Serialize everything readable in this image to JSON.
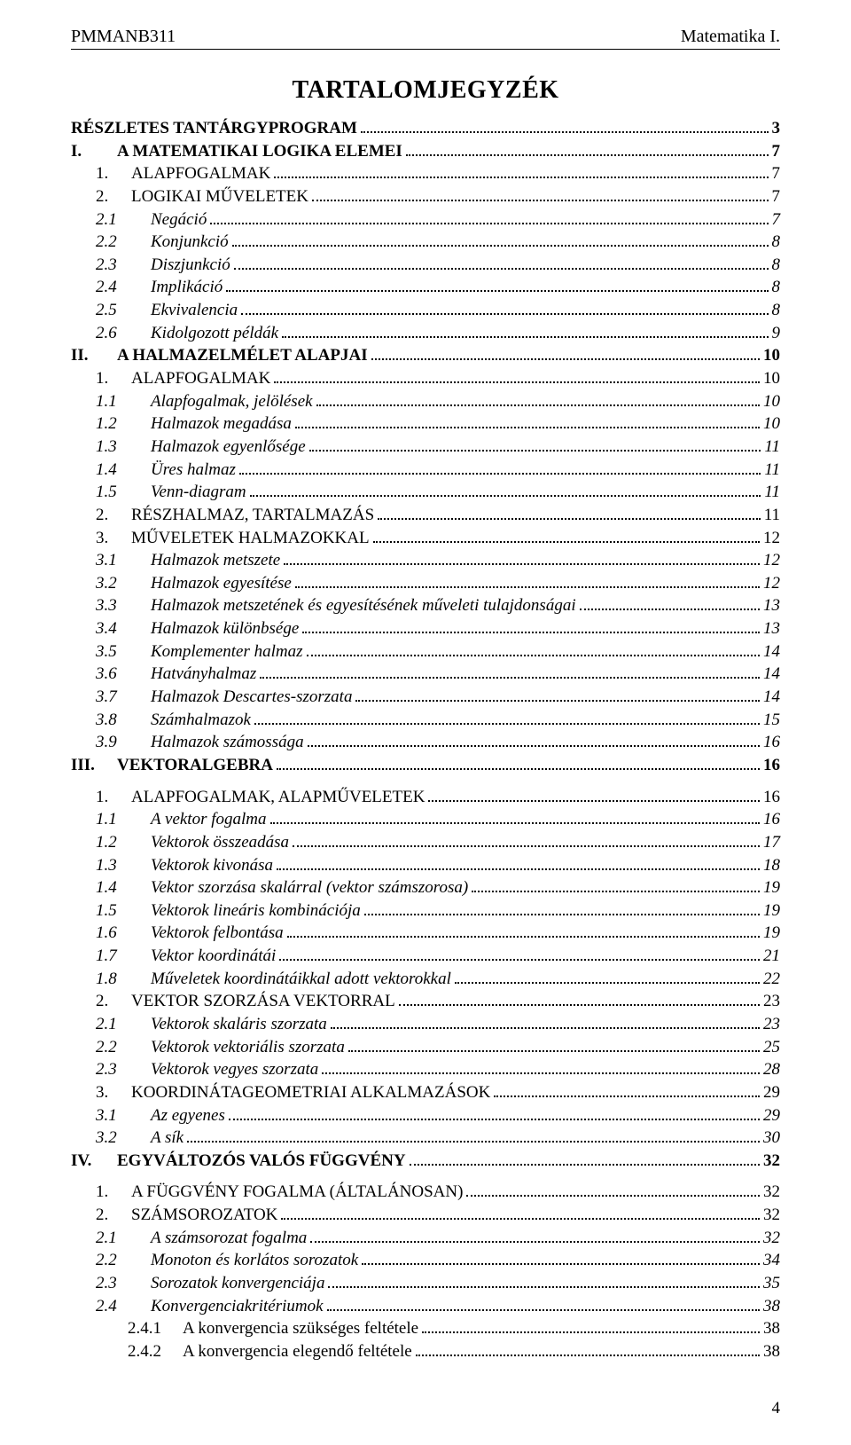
{
  "header": {
    "left": "PMMANB311",
    "right": "Matematika I."
  },
  "title": "TARTALOMJEGYZÉK",
  "page_number": "4",
  "colors": {
    "text": "#000000",
    "bg": "#ffffff",
    "leader": "#000000"
  },
  "fonts": {
    "family": "Times New Roman",
    "body_pt": 19,
    "title_pt": 28,
    "header_pt": 20
  },
  "toc": [
    {
      "level": "top-plain",
      "num": "",
      "label": "RÉSZLETES TANTÁRGYPROGRAM",
      "page": "3",
      "gap_before": false
    },
    {
      "level": "roman",
      "num": "I.",
      "label": "A MATEMATIKAI LOGIKA ELEMEI",
      "page": "7",
      "gap_before": false
    },
    {
      "level": "sec",
      "num": "1.",
      "label": "ALAPFOGALMAK",
      "page": "7",
      "gap_before": false
    },
    {
      "level": "sec",
      "num": "2.",
      "label": "LOGIKAI MŰVELETEK",
      "page": "7",
      "gap_before": false
    },
    {
      "level": "sub",
      "num": "2.1",
      "label": "Negáció",
      "page": "7",
      "gap_before": false
    },
    {
      "level": "sub",
      "num": "2.2",
      "label": "Konjunkció",
      "page": "8",
      "gap_before": false
    },
    {
      "level": "sub",
      "num": "2.3",
      "label": "Diszjunkció",
      "page": "8",
      "gap_before": false
    },
    {
      "level": "sub",
      "num": "2.4",
      "label": "Implikáció",
      "page": "8",
      "gap_before": false
    },
    {
      "level": "sub",
      "num": "2.5",
      "label": "Ekvivalencia",
      "page": "8",
      "gap_before": false
    },
    {
      "level": "sub",
      "num": "2.6",
      "label": "Kidolgozott példák",
      "page": "9",
      "gap_before": false
    },
    {
      "level": "roman",
      "num": "II.",
      "label": "A HALMAZELMÉLET ALAPJAI",
      "page": "10",
      "gap_before": false
    },
    {
      "level": "sec",
      "num": "1.",
      "label": "ALAPFOGALMAK",
      "page": "10",
      "gap_before": false
    },
    {
      "level": "sub",
      "num": "1.1",
      "label": "Alapfogalmak, jelölések",
      "page": "10",
      "gap_before": false
    },
    {
      "level": "sub",
      "num": "1.2",
      "label": "Halmazok megadása",
      "page": "10",
      "gap_before": false
    },
    {
      "level": "sub",
      "num": "1.3",
      "label": "Halmazok egyenlősége",
      "page": "11",
      "gap_before": false
    },
    {
      "level": "sub",
      "num": "1.4",
      "label": "Üres halmaz",
      "page": "11",
      "gap_before": false
    },
    {
      "level": "sub",
      "num": "1.5",
      "label": "Venn-diagram",
      "page": "11",
      "gap_before": false
    },
    {
      "level": "sec",
      "num": "2.",
      "label": "RÉSZHALMAZ, TARTALMAZÁS",
      "page": "11",
      "gap_before": false
    },
    {
      "level": "sec",
      "num": "3.",
      "label": "MŰVELETEK HALMAZOKKAL",
      "page": "12",
      "gap_before": false
    },
    {
      "level": "sub",
      "num": "3.1",
      "label": "Halmazok metszete",
      "page": "12",
      "gap_before": false
    },
    {
      "level": "sub",
      "num": "3.2",
      "label": "Halmazok egyesítése",
      "page": "12",
      "gap_before": false
    },
    {
      "level": "sub",
      "num": "3.3",
      "label": "Halmazok metszetének és egyesítésének műveleti tulajdonságai",
      "page": "13",
      "gap_before": false
    },
    {
      "level": "sub",
      "num": "3.4",
      "label": "Halmazok különbsége",
      "page": "13",
      "gap_before": false
    },
    {
      "level": "sub",
      "num": "3.5",
      "label": "Komplementer halmaz",
      "page": "14",
      "gap_before": false
    },
    {
      "level": "sub",
      "num": "3.6",
      "label": "Hatványhalmaz",
      "page": "14",
      "gap_before": false
    },
    {
      "level": "sub",
      "num": "3.7",
      "label": "Halmazok Descartes-szorzata",
      "page": "14",
      "gap_before": false
    },
    {
      "level": "sub",
      "num": "3.8",
      "label": "Számhalmazok",
      "page": "15",
      "gap_before": false
    },
    {
      "level": "sub",
      "num": "3.9",
      "label": "Halmazok számossága",
      "page": "16",
      "gap_before": false
    },
    {
      "level": "roman",
      "num": "III.",
      "label": "VEKTORALGEBRA",
      "page": "16",
      "gap_before": false
    },
    {
      "level": "sec",
      "num": "1.",
      "label": "ALAPFOGALMAK, ALAPMŰVELETEK",
      "page": "16",
      "gap_before": true
    },
    {
      "level": "sub",
      "num": "1.1",
      "label": "A vektor fogalma",
      "page": "16",
      "gap_before": false
    },
    {
      "level": "sub",
      "num": "1.2",
      "label": "Vektorok összeadása",
      "page": "17",
      "gap_before": false
    },
    {
      "level": "sub",
      "num": "1.3",
      "label": "Vektorok kivonása",
      "page": "18",
      "gap_before": false
    },
    {
      "level": "sub",
      "num": "1.4",
      "label": "Vektor szorzása skalárral (vektor számszorosa)",
      "page": "19",
      "gap_before": false
    },
    {
      "level": "sub",
      "num": "1.5",
      "label": "Vektorok lineáris kombinációja",
      "page": "19",
      "gap_before": false
    },
    {
      "level": "sub",
      "num": "1.6",
      "label": "Vektorok felbontása",
      "page": "19",
      "gap_before": false
    },
    {
      "level": "sub",
      "num": "1.7",
      "label": "Vektor koordinátái",
      "page": "21",
      "gap_before": false
    },
    {
      "level": "sub",
      "num": "1.8",
      "label": "Műveletek koordinátáikkal adott vektorokkal",
      "page": "22",
      "gap_before": false
    },
    {
      "level": "sec",
      "num": "2.",
      "label": "VEKTOR SZORZÁSA VEKTORRAL",
      "page": "23",
      "gap_before": false
    },
    {
      "level": "sub",
      "num": "2.1",
      "label": "Vektorok skaláris szorzata",
      "page": "23",
      "gap_before": false
    },
    {
      "level": "sub",
      "num": "2.2",
      "label": "Vektorok vektoriális szorzata",
      "page": "25",
      "gap_before": false
    },
    {
      "level": "sub",
      "num": "2.3",
      "label": "Vektorok vegyes szorzata",
      "page": "28",
      "gap_before": false
    },
    {
      "level": "sec",
      "num": "3.",
      "label": "KOORDINÁTAGEOMETRIAI ALKALMAZÁSOK",
      "page": "29",
      "gap_before": false
    },
    {
      "level": "sub",
      "num": "3.1",
      "label": "Az egyenes",
      "page": "29",
      "gap_before": false
    },
    {
      "level": "sub",
      "num": "3.2",
      "label": "A sík",
      "page": "30",
      "gap_before": false
    },
    {
      "level": "roman",
      "num": "IV.",
      "label": "EGYVÁLTOZÓS VALÓS FÜGGVÉNY",
      "page": "32",
      "gap_before": false
    },
    {
      "level": "sec",
      "num": "1.",
      "label": "A FÜGGVÉNY FOGALMA (ÁLTALÁNOSAN)",
      "page": "32",
      "gap_before": true
    },
    {
      "level": "sec",
      "num": "2.",
      "label": "SZÁMSOROZATOK",
      "page": "32",
      "gap_before": false
    },
    {
      "level": "sub",
      "num": "2.1",
      "label": "A számsorozat fogalma",
      "page": "32",
      "gap_before": false
    },
    {
      "level": "sub",
      "num": "2.2",
      "label": "Monoton és korlátos sorozatok",
      "page": "34",
      "gap_before": false
    },
    {
      "level": "sub",
      "num": "2.3",
      "label": "Sorozatok konvergenciája",
      "page": "35",
      "gap_before": false
    },
    {
      "level": "sub",
      "num": "2.4",
      "label": "Konvergenciakritériumok",
      "page": "38",
      "gap_before": false
    },
    {
      "level": "subsub",
      "num": "2.4.1",
      "label": "A konvergencia szükséges feltétele",
      "page": "38",
      "gap_before": false
    },
    {
      "level": "subsub",
      "num": "2.4.2",
      "label": "A konvergencia elegendő feltétele",
      "page": "38",
      "gap_before": false
    }
  ]
}
